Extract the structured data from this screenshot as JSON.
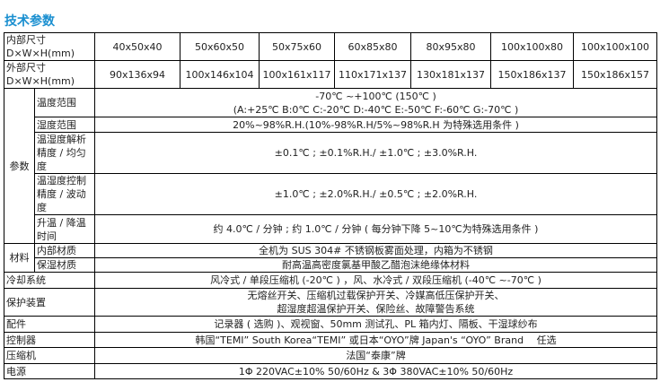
{
  "title": "技术参数",
  "inner_size": {
    "label_line1": "内部尺寸",
    "label_line2": "D×W×H(mm)",
    "values": [
      "40x50x40",
      "50x60x50",
      "50x75x60",
      "60x85x80",
      "80x95x80",
      "100x100x80",
      "100x100x100"
    ]
  },
  "outer_size": {
    "label_line1": "外部尺寸",
    "label_line2": "D×W×H(mm)",
    "values": [
      "90x136x94",
      "100x146x104",
      "100x161x117",
      "110x171x137",
      "130x181x137",
      "150x186x137",
      "150x186x157"
    ]
  },
  "params": {
    "group_label": "参数",
    "temp_range": {
      "label": "温度范围",
      "line1": "-70℃ ~+100℃ (150℃ )",
      "line2": "(A:+25℃ B:0℃ C:-20℃ D:-40℃ E:-50℃ F:-60℃ G:-70℃ )"
    },
    "humidity_range": {
      "label": "湿度范围",
      "value": "20%~98%R.H.(10%-98%R.H/5%~98%R.H 为特殊选用条件 )"
    },
    "resolution": {
      "label": "温湿度解析精度 / 均匀度",
      "value": "±0.1℃ ; ±0.1%R.H./ ±1.0℃ ; ±3.0%R.H."
    },
    "control": {
      "label": "温湿度控制精度 / 波动度",
      "value": "±1.0℃ ; ±2.0%R.H./ ±0.5℃ ; ±2.0%R.H."
    },
    "rate": {
      "label": "升温 / 降温时间",
      "value": "约 4.0℃ / 分钟 ; 约 1.0℃ / 分钟 ( 每分钟下降 5~10℃为特殊选用条件 )"
    }
  },
  "material": {
    "group_label": "材料",
    "inner": {
      "label": "内部材质",
      "value": "全机为 SUS 304# 不锈钢板雾面处理，内箱为不锈钢"
    },
    "insulation": {
      "label": "保湿材质",
      "value": "耐高温高密度氯基甲酸乙醋泡沫绝缘体材料"
    }
  },
  "cooling": {
    "label": "冷却系统",
    "value": "风冷式 / 单段压缩机 (-20℃ ) ，风、水冷式 / 双段压缩机 (-40℃ ~-70℃ )"
  },
  "protection": {
    "label": "保护装置",
    "line1": "无熔丝开关、压缩机过载保护开关、冷媒高低压保护开关、",
    "line2": "超湿度超温保护开关、保险丝、故障警告系统"
  },
  "accessories": {
    "label": "配件",
    "value": "记录器 ( 选购 )、观视窗、50mm 测试孔、PL 箱内灯、隔板、干湿球纱布"
  },
  "controller": {
    "label": "控制器",
    "value": "韩国“TEMI” South Korea“TEMI” 或日本“OYO”牌 Japan's “OYO” Brand 　任选"
  },
  "compressor": {
    "label": "压缩机",
    "value": "法国“泰康”牌"
  },
  "power": {
    "label": "电源",
    "value": "1Φ 220VAC±10% 50/60Hz & 3Φ 380VAC±10% 50/60Hz"
  }
}
